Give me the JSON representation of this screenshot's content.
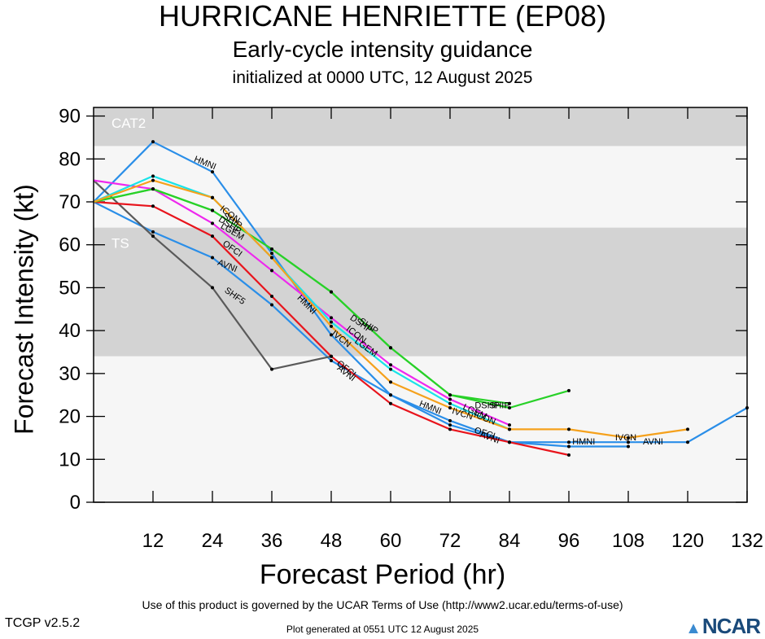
{
  "title": "HURRICANE HENRIETTE (EP08)",
  "subtitle": "Early-cycle intensity guidance",
  "subtitle2": "initialized at 0000 UTC, 12 August 2025",
  "footer": {
    "terms": "Use of this product is governed by the UCAR Terms of Use (http://www2.ucar.edu/terms-of-use)",
    "version": "TCGP v2.5.2",
    "generated": "Plot generated at 0551 UTC   12 August 2025",
    "logo": "NCAR"
  },
  "chart_data": {
    "type": "line",
    "xlabel": "Forecast Period (hr)",
    "ylabel": "Forecast Intensity (kt)",
    "xlim": [
      0,
      132
    ],
    "ylim": [
      0,
      92
    ],
    "xticks": [
      12,
      24,
      36,
      48,
      60,
      72,
      84,
      96,
      108,
      120,
      132
    ],
    "yticks": [
      0,
      10,
      20,
      30,
      40,
      50,
      60,
      70,
      80,
      90
    ],
    "bands": [
      {
        "label": "CAT2",
        "from": 83,
        "to": 92,
        "color": "#d3d3d3"
      },
      {
        "label": "",
        "from": 64,
        "to": 83,
        "color": "#f6f6f6"
      },
      {
        "label": "TS",
        "from": 34,
        "to": 64,
        "color": "#d3d3d3"
      },
      {
        "label": "",
        "from": 0,
        "to": 34,
        "color": "#f6f6f6"
      }
    ],
    "series": [
      {
        "name": "HMNI",
        "color": "#2a8ee8",
        "x": [
          0,
          12,
          24,
          36,
          48,
          60,
          72,
          84,
          96,
          108,
          120,
          132
        ],
        "y": [
          70,
          84,
          77,
          58,
          39,
          25,
          19,
          14,
          14,
          14,
          14,
          22
        ],
        "labels": [
          {
            "text": "HMNI",
            "x": 22.5,
            "y": 79,
            "angle": 22
          },
          {
            "text": "HMNI",
            "x": 43,
            "y": 46,
            "angle": 45
          },
          {
            "text": "HMNI",
            "x": 68,
            "y": 22,
            "angle": 22
          },
          {
            "text": "HMNI",
            "x": 99,
            "y": 14,
            "angle": 0
          }
        ]
      },
      {
        "name": "AVNI",
        "color": "#2a8ee8",
        "x": [
          0,
          12,
          24,
          36,
          48,
          60,
          72,
          84,
          96,
          108
        ],
        "y": [
          70,
          63,
          57,
          46,
          33,
          25,
          18,
          14,
          13,
          13
        ],
        "labels": [
          {
            "text": "AVNI",
            "x": 27,
            "y": 55,
            "angle": 22
          },
          {
            "text": "AVNI",
            "x": 51,
            "y": 30,
            "angle": 38
          },
          {
            "text": "AVNI",
            "x": 80,
            "y": 15,
            "angle": 20
          },
          {
            "text": "AVNI",
            "x": 113,
            "y": 14,
            "angle": 0
          }
        ]
      },
      {
        "name": "SHF5",
        "color": "#5a5a5a",
        "x": [
          0,
          12,
          24,
          36,
          48
        ],
        "y": [
          75,
          62,
          50,
          31,
          34
        ],
        "labels": [
          {
            "text": "SHF5",
            "x": 28.5,
            "y": 48,
            "angle": 35
          }
        ]
      },
      {
        "name": "OFCI",
        "color": "#e8141c",
        "x": [
          0,
          12,
          24,
          36,
          48,
          60,
          72,
          84,
          96
        ],
        "y": [
          70,
          69,
          62,
          48,
          34,
          23,
          17,
          14,
          11
        ],
        "labels": [
          {
            "text": "OFCI",
            "x": 28,
            "y": 59,
            "angle": 35
          },
          {
            "text": "OFCI",
            "x": 51,
            "y": 31,
            "angle": 38
          },
          {
            "text": "OFCI",
            "x": 79,
            "y": 16,
            "angle": 18
          }
        ]
      },
      {
        "name": "LGEM",
        "color": "#ee28ee",
        "x": [
          0,
          12,
          24,
          36,
          48,
          60,
          72,
          84
        ],
        "y": [
          75,
          73,
          65,
          54,
          43,
          32,
          24,
          18
        ],
        "labels": [
          {
            "text": "LGEM",
            "x": 28,
            "y": 63,
            "angle": 30
          },
          {
            "text": "LGEM",
            "x": 55,
            "y": 36,
            "angle": 35
          },
          {
            "text": "LGEM",
            "x": 77,
            "y": 21,
            "angle": 25
          }
        ]
      },
      {
        "name": "SHIP",
        "color": "#28d128",
        "x": [
          0,
          12,
          24,
          36,
          48,
          60,
          72,
          84,
          96
        ],
        "y": [
          70,
          73,
          68,
          59,
          49,
          36,
          25,
          22,
          26
        ],
        "labels": [
          {
            "text": "SHIP",
            "x": 28,
            "y": 65.5,
            "angle": 33
          },
          {
            "text": "SHIP",
            "x": 55.5,
            "y": 41,
            "angle": 35
          },
          {
            "text": "SHIP",
            "x": 82,
            "y": 22.5,
            "angle": 0
          }
        ]
      },
      {
        "name": "DSHP",
        "color": "#28d128",
        "x": [
          0,
          12,
          24,
          36,
          48,
          60,
          72,
          84
        ],
        "y": [
          70,
          73,
          68,
          59,
          49,
          36,
          25,
          23
        ],
        "labels": [
          {
            "text": "DSHP",
            "x": 27.5,
            "y": 64.5,
            "angle": 33
          },
          {
            "text": "DSHP",
            "x": 54,
            "y": 41.5,
            "angle": 35
          },
          {
            "text": "DSHP",
            "x": 79.5,
            "y": 22.5,
            "angle": 0
          }
        ]
      },
      {
        "name": "ICON",
        "color": "#19e3e8",
        "x": [
          0,
          12,
          24,
          36,
          48,
          60,
          72,
          84
        ],
        "y": [
          70,
          76,
          71,
          57,
          42,
          31,
          23,
          17
        ],
        "labels": [
          {
            "text": "ICON",
            "x": 27.5,
            "y": 67,
            "angle": 38
          },
          {
            "text": "ICON",
            "x": 53,
            "y": 39,
            "angle": 38
          },
          {
            "text": "ICON",
            "x": 79,
            "y": 19.5,
            "angle": 22
          }
        ]
      },
      {
        "name": "IVCN",
        "color": "#f5a11c",
        "x": [
          0,
          12,
          24,
          36,
          48,
          60,
          72,
          84,
          96,
          108,
          120
        ],
        "y": [
          70,
          75,
          71,
          57,
          41,
          28,
          22,
          17,
          17,
          15,
          17
        ],
        "labels": [
          {
            "text": "IVCN",
            "x": 50,
            "y": 38,
            "angle": 38
          },
          {
            "text": "IVCN",
            "x": 74.5,
            "y": 20.5,
            "angle": 18
          },
          {
            "text": "IVCN",
            "x": 107.5,
            "y": 15,
            "angle": 0
          }
        ]
      }
    ]
  }
}
